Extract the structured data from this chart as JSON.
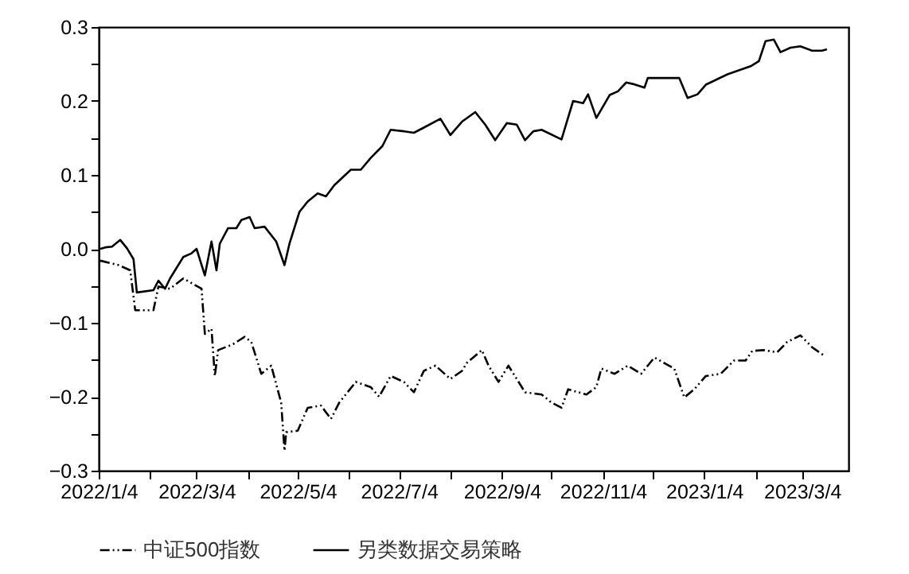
{
  "chart_data": {
    "type": "line",
    "legend": "bottom",
    "xlim": [
      "2022-01-04",
      "2023-04-01"
    ],
    "ylim": [
      -0.3,
      0.3
    ],
    "xticks": [
      {
        "value": "2022-01-04",
        "label": "2022/1/4"
      },
      {
        "value": "2022-02-04",
        "label": null
      },
      {
        "value": "2022-03-04",
        "label": "2022/3/4"
      },
      {
        "value": "2022-04-04",
        "label": null
      },
      {
        "value": "2022-05-04",
        "label": "2022/5/4"
      },
      {
        "value": "2022-06-04",
        "label": null
      },
      {
        "value": "2022-07-04",
        "label": "2022/7/4"
      },
      {
        "value": "2022-08-04",
        "label": null
      },
      {
        "value": "2022-09-04",
        "label": "2022/9/4"
      },
      {
        "value": "2022-10-04",
        "label": null
      },
      {
        "value": "2022-11-04",
        "label": "2022/11/4"
      },
      {
        "value": "2022-12-04",
        "label": null
      },
      {
        "value": "2023-01-04",
        "label": "2023/1/4"
      },
      {
        "value": "2023-02-04",
        "label": null
      },
      {
        "value": "2023-03-04",
        "label": "2023/3/4"
      }
    ],
    "yticks": [
      {
        "value": -0.3,
        "label": "−0.3"
      },
      {
        "value": -0.25,
        "label": null
      },
      {
        "value": -0.2,
        "label": "−0.2"
      },
      {
        "value": -0.15,
        "label": null
      },
      {
        "value": -0.1,
        "label": "−0.1"
      },
      {
        "value": -0.05,
        "label": null
      },
      {
        "value": 0,
        "label": "0.0"
      },
      {
        "value": 0.05,
        "label": null
      },
      0.1,
      {
        "value": 0.15,
        "label": null
      },
      0.2,
      {
        "value": 0.25,
        "label": null
      },
      0.3
    ],
    "series": [
      {
        "name": "中证500指数",
        "color": "#000000",
        "line_style": "dashed",
        "x": [
          "2022-01-05",
          "2022-01-16",
          "2022-01-23",
          "2022-01-26",
          "2022-02-06",
          "2022-02-09",
          "2022-02-16",
          "2022-02-24",
          "2022-03-07",
          "2022-03-09",
          "2022-03-13",
          "2022-03-15",
          "2022-03-17",
          "2022-03-26",
          "2022-04-02",
          "2022-04-06",
          "2022-04-12",
          "2022-04-18",
          "2022-04-24",
          "2022-04-26",
          "2022-04-27",
          "2022-05-04",
          "2022-05-10",
          "2022-05-18",
          "2022-05-24",
          "2022-05-29",
          "2022-06-08",
          "2022-06-17",
          "2022-06-22",
          "2022-06-29",
          "2022-07-07",
          "2022-07-13",
          "2022-07-19",
          "2022-07-26",
          "2022-08-04",
          "2022-08-11",
          "2022-08-14",
          "2022-08-23",
          "2022-08-27",
          "2022-09-02",
          "2022-09-08",
          "2022-09-18",
          "2022-09-28",
          "2022-10-04",
          "2022-10-10",
          "2022-10-14",
          "2022-10-25",
          "2022-10-31",
          "2022-11-03",
          "2022-11-11",
          "2022-11-19",
          "2022-11-27",
          "2022-12-05",
          "2022-12-17",
          "2022-12-23",
          "2022-12-29",
          "2023-01-05",
          "2023-01-14",
          "2023-01-22",
          "2023-01-29",
          "2023-02-02",
          "2023-02-09",
          "2023-02-17",
          "2023-02-23",
          "2023-03-03",
          "2023-03-10",
          "2023-03-17"
        ],
        "values": [
          -0.016,
          -0.022,
          -0.029,
          -0.083,
          -0.083,
          -0.051,
          -0.054,
          -0.04,
          -0.054,
          -0.115,
          -0.108,
          -0.172,
          -0.137,
          -0.129,
          -0.119,
          -0.126,
          -0.169,
          -0.158,
          -0.208,
          -0.273,
          -0.248,
          -0.246,
          -0.215,
          -0.212,
          -0.23,
          -0.208,
          -0.18,
          -0.187,
          -0.2,
          -0.172,
          -0.18,
          -0.194,
          -0.165,
          -0.158,
          -0.176,
          -0.165,
          -0.154,
          -0.137,
          -0.158,
          -0.18,
          -0.158,
          -0.194,
          -0.197,
          -0.208,
          -0.215,
          -0.19,
          -0.197,
          -0.187,
          -0.162,
          -0.169,
          -0.158,
          -0.169,
          -0.147,
          -0.162,
          -0.201,
          -0.19,
          -0.172,
          -0.169,
          -0.151,
          -0.151,
          -0.138,
          -0.137,
          -0.14,
          -0.126,
          -0.117,
          -0.133,
          -0.144
        ]
      },
      {
        "name": "另类数据交易策略",
        "color": "#000000",
        "line_style": "solid",
        "x": [
          "2022-01-05",
          "2022-01-08",
          "2022-01-12",
          "2022-01-17",
          "2022-01-21",
          "2022-01-25",
          "2022-01-27",
          "2022-02-06",
          "2022-02-09",
          "2022-02-13",
          "2022-02-16",
          "2022-02-24",
          "2022-03-01",
          "2022-03-04",
          "2022-03-09",
          "2022-03-13",
          "2022-03-16",
          "2022-03-18",
          "2022-03-23",
          "2022-03-28",
          "2022-03-31",
          "2022-04-05",
          "2022-04-08",
          "2022-04-14",
          "2022-04-21",
          "2022-04-26",
          "2022-04-29",
          "2022-05-05",
          "2022-05-10",
          "2022-05-16",
          "2022-05-21",
          "2022-05-26",
          "2022-06-05",
          "2022-06-11",
          "2022-06-17",
          "2022-06-24",
          "2022-06-29",
          "2022-07-07",
          "2022-07-13",
          "2022-07-19",
          "2022-07-29",
          "2022-08-04",
          "2022-08-11",
          "2022-08-19",
          "2022-08-25",
          "2022-08-31",
          "2022-09-07",
          "2022-09-13",
          "2022-09-18",
          "2022-09-23",
          "2022-09-28",
          "2022-10-10",
          "2022-10-17",
          "2022-10-23",
          "2022-10-26",
          "2022-10-31",
          "2022-11-08",
          "2022-11-13",
          "2022-11-18",
          "2022-11-22",
          "2022-11-29",
          "2022-12-01",
          "2022-12-20",
          "2022-12-25",
          "2022-12-31",
          "2023-01-05",
          "2023-01-18",
          "2023-02-01",
          "2023-02-06",
          "2023-02-10",
          "2023-02-15",
          "2023-02-19",
          "2023-02-25",
          "2023-03-03",
          "2023-03-10",
          "2023-03-16",
          "2023-03-19"
        ],
        "values": [
          0.0,
          0.002,
          0.003,
          0.012,
          0.001,
          -0.014,
          -0.059,
          -0.056,
          -0.043,
          -0.054,
          -0.04,
          -0.011,
          -0.006,
          0.0,
          -0.036,
          0.01,
          -0.029,
          0.007,
          0.028,
          0.028,
          0.039,
          0.043,
          0.028,
          0.03,
          0.01,
          -0.022,
          0.007,
          0.05,
          0.064,
          0.075,
          0.071,
          0.086,
          0.107,
          0.107,
          0.123,
          0.139,
          0.161,
          0.159,
          0.157,
          0.164,
          0.176,
          0.154,
          0.172,
          0.185,
          0.168,
          0.147,
          0.17,
          0.168,
          0.147,
          0.159,
          0.161,
          0.148,
          0.2,
          0.197,
          0.209,
          0.177,
          0.208,
          0.213,
          0.225,
          0.223,
          0.218,
          0.231,
          0.231,
          0.204,
          0.209,
          0.222,
          0.236,
          0.247,
          0.254,
          0.281,
          0.283,
          0.266,
          0.272,
          0.274,
          0.268,
          0.268,
          0.27
        ]
      }
    ]
  }
}
